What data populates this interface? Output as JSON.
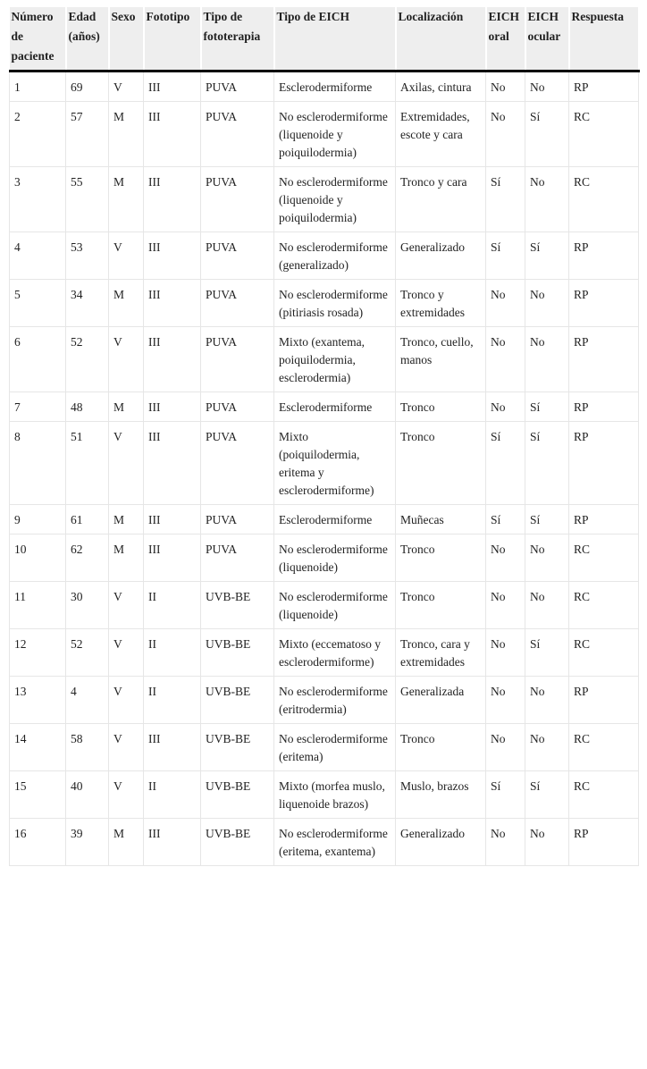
{
  "headers": [
    "Número de paciente",
    "Edad (años)",
    "Sexo",
    "Fototipo",
    "Tipo de fototerapia",
    "Tipo de EICH",
    "Localización",
    "EICH oral",
    "EICH ocular",
    "Respuesta"
  ],
  "rows": [
    [
      "1",
      "69",
      "V",
      "III",
      "PUVA",
      "Esclerodermiforme",
      "Axilas, cintura",
      "No",
      "No",
      "RP"
    ],
    [
      "2",
      "57",
      "M",
      "III",
      "PUVA",
      "No esclerodermiforme (liquenoide y poiquilodermia)",
      "Extremidades, escote y cara",
      "No",
      "Sí",
      "RC"
    ],
    [
      "3",
      "55",
      "M",
      "III",
      "PUVA",
      "No esclerodermiforme (liquenoide y poiquilodermia)",
      "Tronco y cara",
      "Sí",
      "No",
      "RC"
    ],
    [
      "4",
      "53",
      "V",
      "III",
      "PUVA",
      "No esclerodermiforme (generalizado)",
      "Generalizado",
      "Sí",
      "Sí",
      "RP"
    ],
    [
      "5",
      "34",
      "M",
      "III",
      "PUVA",
      "No esclerodermiforme (pitiriasis rosada)",
      "Tronco y extremidades",
      "No",
      "No",
      "RP"
    ],
    [
      "6",
      "52",
      "V",
      "III",
      "PUVA",
      "Mixto (exantema, poiquilodermia, esclerodermia)",
      "Tronco, cuello, manos",
      "No",
      "No",
      "RP"
    ],
    [
      "7",
      "48",
      "M",
      "III",
      "PUVA",
      "Esclerodermiforme",
      "Tronco",
      "No",
      "Sí",
      "RP"
    ],
    [
      "8",
      "51",
      "V",
      "III",
      "PUVA",
      "Mixto (poiquilodermia, eritema y esclerodermiforme)",
      "Tronco",
      "Sí",
      "Sí",
      "RP"
    ],
    [
      "9",
      "61",
      "M",
      "III",
      "PUVA",
      "Esclerodermiforme",
      "Muñecas",
      "Sí",
      "Sí",
      "RP"
    ],
    [
      "10",
      "62",
      "M",
      "III",
      "PUVA",
      "No esclerodermiforme (liquenoide)",
      "Tronco",
      "No",
      "No",
      "RC"
    ],
    [
      "11",
      "30",
      "V",
      "II",
      "UVB-BE",
      "No esclerodermiforme (liquenoide)",
      "Tronco",
      "No",
      "No",
      "RC"
    ],
    [
      "12",
      "52",
      "V",
      "II",
      "UVB-BE",
      "Mixto (eccematoso y esclerodermiforme)",
      "Tronco, cara y extremidades",
      "No",
      "Sí",
      "RC"
    ],
    [
      "13",
      "4",
      "V",
      "II",
      "UVB-BE",
      "No esclerodermiforme (eritrodermia)",
      "Generalizada",
      "No",
      "No",
      "RP"
    ],
    [
      "14",
      "58",
      "V",
      "III",
      "UVB-BE",
      "No esclerodermiforme (eritema)",
      "Tronco",
      "No",
      "No",
      "RC"
    ],
    [
      "15",
      "40",
      "V",
      "II",
      "UVB-BE",
      "Mixto (morfea muslo, liquenoide brazos)",
      "Muslo, brazos",
      "Sí",
      "Sí",
      "RC"
    ],
    [
      "16",
      "39",
      "M",
      "III",
      "UVB-BE",
      "No esclerodermiforme (eritema, exantema)",
      "Generalizado",
      "No",
      "No",
      "RP"
    ]
  ]
}
